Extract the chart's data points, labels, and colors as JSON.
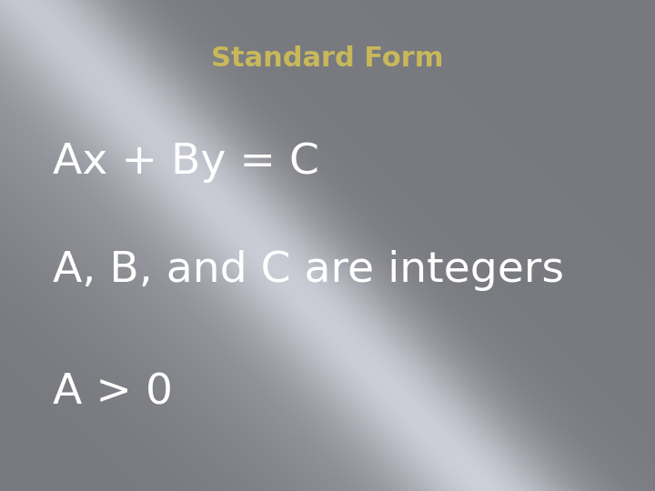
{
  "title": "Standard Form",
  "title_color": "#c8b85a",
  "title_fontsize": 22,
  "title_bold": true,
  "line1": "Ax + By = C",
  "line2": "A, B, and C are integers",
  "line3": "A > 0",
  "text_color": "#ffffff",
  "text_fontsize": 34,
  "figsize": [
    7.2,
    5.4
  ],
  "dpi": 100
}
